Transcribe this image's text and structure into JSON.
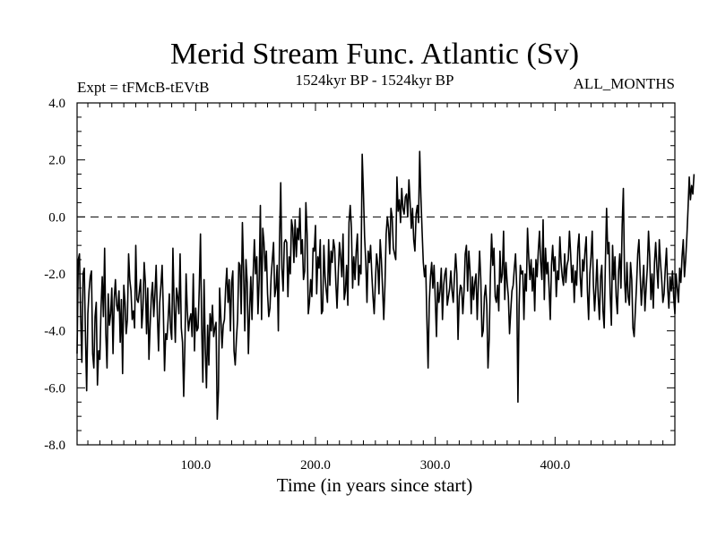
{
  "chart_data": {
    "type": "line",
    "title": "Merid Stream Func. Atlantic (Sv)",
    "subtitle_left": "Expt = tFMcB-tEVtB",
    "subtitle_center": "1524kyr BP - 1524kyr BP",
    "subtitle_right": "ALL_MONTHS",
    "xlabel": "Time (in years since start)",
    "ylabel": "",
    "xlim": [
      1,
      500
    ],
    "ylim": [
      -8,
      4
    ],
    "x_ticks": [
      100,
      200,
      300,
      400
    ],
    "x_tick_labels": [
      "100.0",
      "200.0",
      "300.0",
      "400.0"
    ],
    "y_ticks": [
      -8,
      -6,
      -4,
      -2,
      0,
      2,
      4
    ],
    "y_tick_labels": [
      "-8.0",
      "-6.0",
      "-4.0",
      "-2.0",
      "0.0",
      "2.0",
      "4.0"
    ],
    "reference_line": {
      "y": 0,
      "style": "dashed"
    },
    "grid": false,
    "series": [
      {
        "name": "Merid Stream Func. Atlantic",
        "x_start": 1,
        "x_step": 1,
        "line_color": "#000000",
        "values": [
          -4.8,
          -1.5,
          -1.3,
          -3.5,
          -5.1,
          -2.0,
          -1.8,
          -4.2,
          -6.1,
          -3.4,
          -2.6,
          -2.1,
          -1.9,
          -4.8,
          -5.3,
          -3.5,
          -3.0,
          -5.9,
          -4.7,
          -5.0,
          -3.2,
          -2.1,
          -3.5,
          -1.1,
          -4.1,
          -5.3,
          -2.7,
          -3.8,
          -3.4,
          -2.5,
          -4.8,
          -2.9,
          -2.2,
          -3.1,
          -3.3,
          -2.6,
          -4.4,
          -2.9,
          -5.5,
          -2.4,
          -3.0,
          -4.1,
          -3.6,
          -1.3,
          -2.2,
          -2.6,
          -3.6,
          -3.3,
          -3.9,
          -1.0,
          -2.9,
          -3.0,
          -2.6,
          -2.2,
          -3.9,
          -3.2,
          -1.6,
          -2.3,
          -4.1,
          -2.5,
          -5.0,
          -3.8,
          -2.8,
          -2.3,
          -3.5,
          -2.7,
          -1.7,
          -3.4,
          -4.7,
          -3.0,
          -2.4,
          -1.7,
          -3.3,
          -5.4,
          -4.1,
          -4.3,
          -3.6,
          -2.7,
          -3.9,
          -4.3,
          -1.1,
          -3.1,
          -4.4,
          -2.5,
          -2.8,
          -3.4,
          -1.3,
          -3.9,
          -4.4,
          -6.3,
          -4.5,
          -2.0,
          -3.3,
          -4.0,
          -3.6,
          -3.4,
          -4.2,
          -2.0,
          -4.7,
          -3.2,
          -4.0,
          -3.9,
          -2.5,
          -0.6,
          -3.8,
          -5.8,
          -2.2,
          -4.6,
          -6.0,
          -3.8,
          -5.2,
          -3.4,
          -4.0,
          -3.1,
          -4.2,
          -3.9,
          -3.7,
          -7.1,
          -6.1,
          -2.5,
          -3.5,
          -4.6,
          -3.8,
          -3.6,
          -2.5,
          -1.8,
          -3.0,
          -2.2,
          -4.0,
          -2.3,
          -1.9,
          -4.7,
          -5.2,
          -4.3,
          -3.6,
          -1.6,
          -1.7,
          -3.4,
          -0.2,
          -1.9,
          -4.0,
          -1.5,
          -2.3,
          -4.8,
          -3.3,
          -2.1,
          -3.6,
          -2.0,
          -0.8,
          -2.0,
          -1.4,
          -3.4,
          -2.2,
          0.4,
          -3.6,
          -0.4,
          -0.9,
          -1.9,
          -1.2,
          -2.7,
          -3.5,
          -3.2,
          -2.1,
          -1.5,
          -0.9,
          -2.8,
          -2.5,
          -1.7,
          -4.0,
          -0.8,
          1.2,
          -1.8,
          -2.6,
          -0.9,
          -0.8,
          -0.9,
          -2.8,
          -1.4,
          -2.0,
          -0.1,
          -0.4,
          -1.6,
          -0.1,
          -1.4,
          -0.4,
          -0.8,
          0.3,
          -1.3,
          -0.8,
          -2.2,
          -1.9,
          0.5,
          -0.6,
          -3.4,
          -3.0,
          -2.2,
          -2.8,
          -1.1,
          -1.2,
          -0.3,
          -2.7,
          -1.4,
          -1.8,
          -0.8,
          -3.4,
          -3.3,
          -1.0,
          -2.1,
          -2.6,
          -3.0,
          -0.8,
          -2.4,
          -1.2,
          -1.6,
          -0.8,
          -1.1,
          -2.3,
          -3.2,
          -2.0,
          -0.9,
          -1.4,
          -2.1,
          -0.6,
          -2.9,
          -2.6,
          -1.7,
          -3.1,
          -0.2,
          0.4,
          -0.4,
          -2.5,
          -1.4,
          -2.2,
          -1.2,
          -0.6,
          -2.4,
          -1.7,
          -2.0,
          2.2,
          0.9,
          -0.7,
          -1.6,
          -3.0,
          -1.2,
          -1.6,
          -1.0,
          -2.0,
          -2.8,
          -3.4,
          -2.3,
          -1.3,
          -1.7,
          -2.7,
          -0.8,
          -1.5,
          -2.5,
          -3.6,
          -2.4,
          -0.6,
          0.0,
          -0.4,
          -1.3,
          0.3,
          0.0,
          -1.1,
          -1.3,
          -1.5,
          1.4,
          0.2,
          0.6,
          -0.2,
          1.0,
          0.3,
          0.1,
          0.7,
          0.8,
          0.0,
          1.3,
          0.5,
          -0.4,
          0.3,
          -0.8,
          -1.2,
          0.1,
          0.4,
          -0.2,
          2.3,
          0.7,
          -0.5,
          -1.6,
          -2.1,
          -1.7,
          -3.6,
          -5.3,
          -3.0,
          -2.1,
          -1.6,
          -2.5,
          -1.7,
          -2.9,
          -4.2,
          -2.3,
          -3.0,
          -2.6,
          -1.8,
          -3.6,
          -2.4,
          -2.0,
          -1.8,
          -3.1,
          -2.8,
          -2.5,
          -1.9,
          -2.6,
          -3.0,
          -2.1,
          -1.3,
          -2.0,
          -4.3,
          -2.8,
          -2.4,
          -2.5,
          -3.4,
          -2.6,
          -1.3,
          -1.0,
          -2.6,
          -1.2,
          -1.9,
          -3.4,
          -2.1,
          -2.9,
          -2.3,
          -2.0,
          -3.6,
          -2.3,
          -1.2,
          -2.2,
          -4.2,
          -4.0,
          -2.8,
          -2.4,
          -3.1,
          -5.3,
          -4.3,
          -2.1,
          -0.6,
          -1.7,
          -1.1,
          -2.8,
          -3.0,
          -2.4,
          -3.3,
          -1.2,
          -2.3,
          -2.0,
          -0.5,
          -2.9,
          -1.6,
          -2.3,
          -2.8,
          -4.1,
          -3.3,
          -2.6,
          -2.4,
          -1.8,
          -1.3,
          -2.5,
          -6.5,
          -3.1,
          -1.7,
          -2.0,
          -1.9,
          -3.6,
          -2.0,
          -2.6,
          -0.4,
          -1.4,
          -2.2,
          -1.5,
          -2.6,
          -1.8,
          -3.3,
          -1.5,
          -2.1,
          -1.2,
          -0.5,
          -1.6,
          -2.2,
          -0.1,
          -2.9,
          -1.1,
          -2.0,
          -1.6,
          -2.5,
          -3.6,
          -1.7,
          -1.0,
          -1.9,
          -1.4,
          -2.8,
          -1.9,
          -2.2,
          -0.7,
          -1.6,
          -2.1,
          -2.4,
          -1.3,
          -2.3,
          -1.7,
          -1.5,
          -0.5,
          -1.3,
          -2.3,
          -1.7,
          -3.0,
          -1.9,
          -2.4,
          -1.1,
          -0.6,
          -2.1,
          -2.8,
          -1.5,
          -1.9,
          -1.2,
          -0.7,
          -2.6,
          -3.6,
          -2.0,
          -1.4,
          -0.5,
          -2.4,
          -3.3,
          -2.5,
          -1.5,
          -2.8,
          -3.6,
          -2.1,
          -1.7,
          -3.3,
          -3.9,
          -1.6,
          0.3,
          -1.3,
          -0.9,
          -2.7,
          -3.8,
          -1.0,
          -2.2,
          -1.4,
          -2.8,
          -3.4,
          -1.9,
          -1.3,
          -2.5,
          -0.3,
          1.0,
          -2.2,
          -3.0,
          -1.6,
          -2.8,
          -3.1,
          -1.6,
          -2.2,
          -3.9,
          -4.2,
          -3.3,
          -2.4,
          -1.3,
          -0.8,
          -2.0,
          -3.1,
          -2.4,
          -1.7,
          -3.3,
          -2.5,
          -1.8,
          -0.5,
          -1.4,
          -2.9,
          -2.0,
          -3.2,
          -1.6,
          -0.9,
          -1.8,
          -2.5,
          -0.8,
          -1.6,
          -2.2,
          -3.0,
          -2.7,
          -1.8,
          -1.1,
          -2.5,
          -3.2,
          -2.1,
          -2.6,
          -1.9,
          -2.8,
          -3.4,
          -2.0,
          -2.5,
          -3.0,
          -1.8,
          -2.3,
          -1.4,
          -0.8,
          -2.1,
          -1.5,
          -0.7,
          0.3,
          1.4,
          0.6,
          1.1,
          0.8,
          1.5
        ]
      }
    ]
  }
}
